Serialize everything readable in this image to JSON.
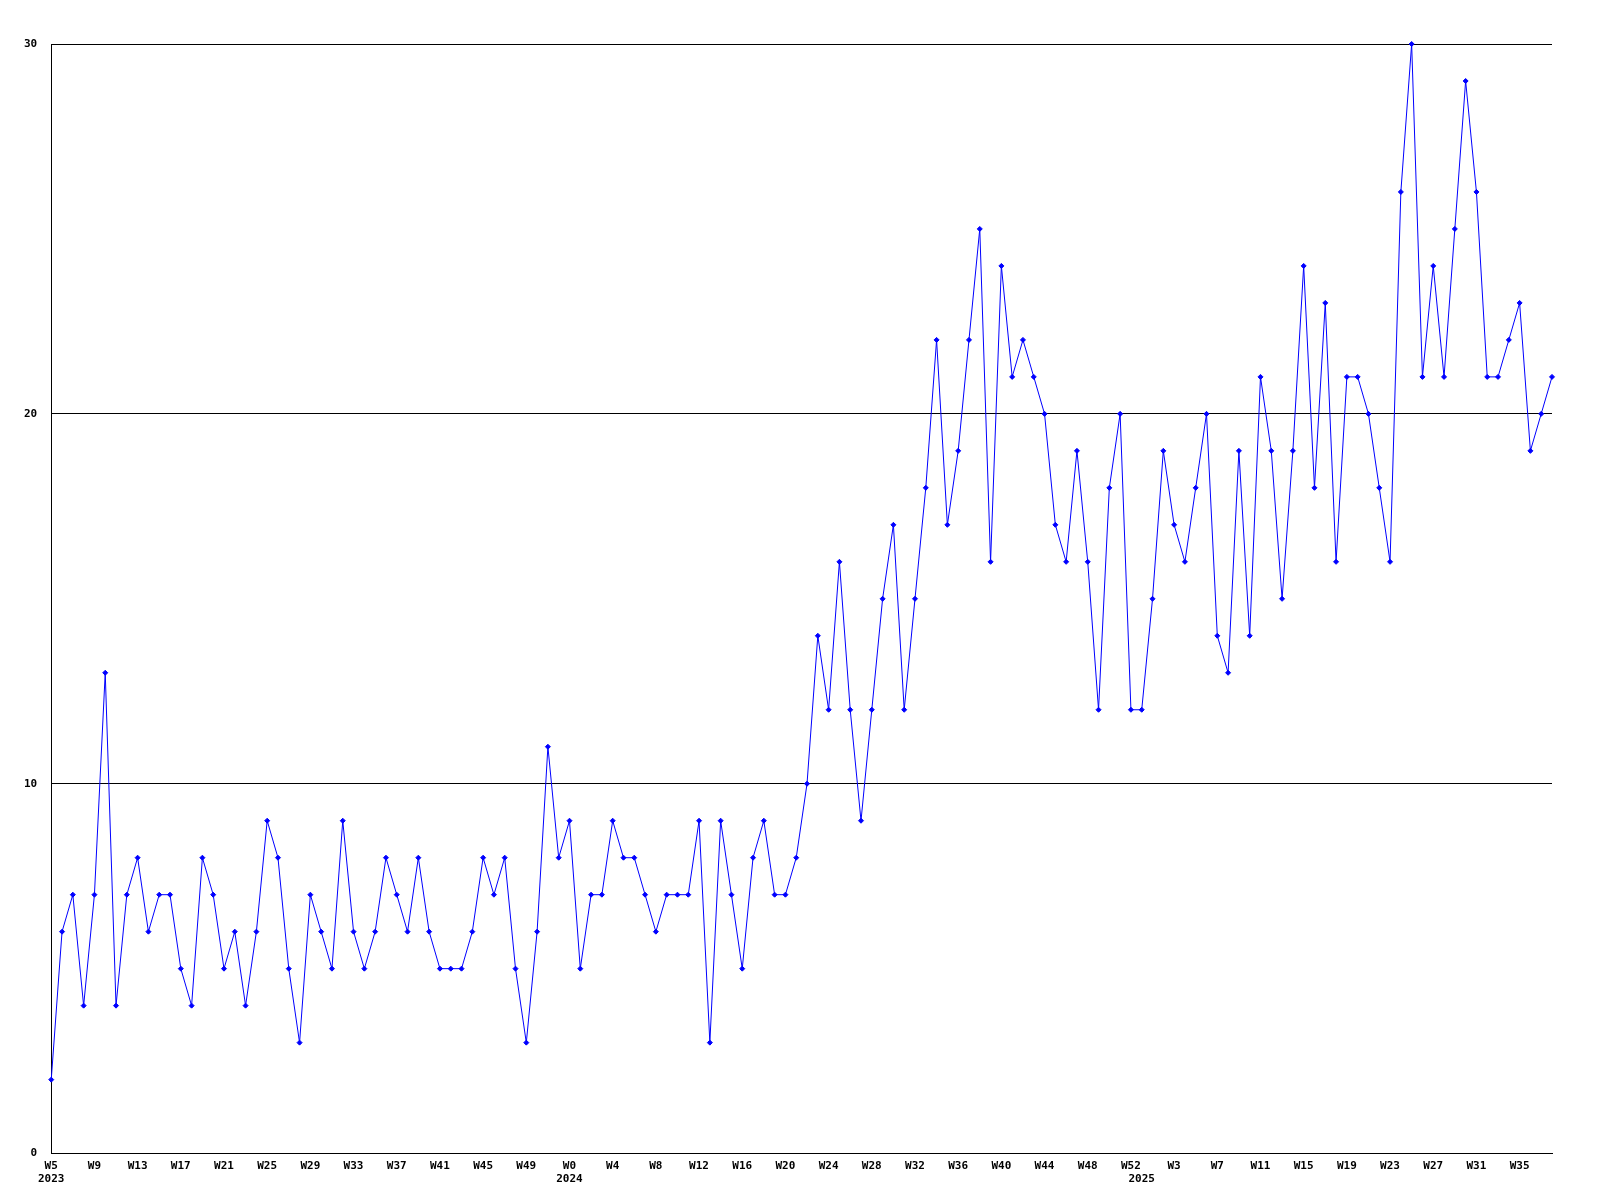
{
  "chart_data": {
    "type": "line",
    "categories": [
      "W5\n2023",
      null,
      null,
      null,
      "W9",
      null,
      null,
      null,
      "W13",
      null,
      null,
      null,
      "W17",
      null,
      null,
      null,
      "W21",
      null,
      null,
      null,
      "W25",
      null,
      null,
      null,
      "W29",
      null,
      null,
      null,
      "W33",
      null,
      null,
      null,
      "W37",
      null,
      null,
      null,
      "W41",
      null,
      null,
      null,
      "W45",
      null,
      null,
      null,
      "W49",
      null,
      null,
      null,
      "W0\n2024",
      null,
      null,
      null,
      "W4",
      null,
      null,
      null,
      "W8",
      null,
      null,
      null,
      "W12",
      null,
      null,
      null,
      "W16",
      null,
      null,
      null,
      "W20",
      null,
      null,
      null,
      "W24",
      null,
      null,
      null,
      "W28",
      null,
      null,
      null,
      "W32",
      null,
      null,
      null,
      "W36",
      null,
      null,
      null,
      "W40",
      null,
      null,
      null,
      "W44",
      null,
      null,
      null,
      "W48",
      null,
      null,
      null,
      "W52",
      "\n2025",
      null,
      null,
      "W3",
      null,
      null,
      null,
      "W7",
      null,
      null,
      null,
      "W11",
      null,
      null,
      null,
      "W15",
      null,
      null,
      null,
      "W19",
      null,
      null,
      null,
      "W23",
      null,
      null,
      null,
      "W27",
      null,
      null,
      null,
      "W31",
      null,
      null,
      null,
      "W35",
      null,
      null,
      null
    ],
    "series": [
      {
        "color": "#0000ff",
        "values": [
          2,
          6,
          7,
          4,
          7,
          13,
          4,
          7,
          8,
          6,
          7,
          7,
          5,
          4,
          8,
          7,
          5,
          6,
          4,
          6,
          9,
          8,
          5,
          3,
          7,
          6,
          5,
          9,
          6,
          5,
          6,
          8,
          7,
          6,
          8,
          6,
          5,
          5,
          5,
          6,
          8,
          7,
          8,
          5,
          3,
          6,
          11,
          8,
          9,
          5,
          7,
          7,
          9,
          8,
          8,
          7,
          6,
          7,
          7,
          7,
          9,
          3,
          9,
          7,
          5,
          8,
          9,
          7,
          7,
          8,
          10,
          14,
          12,
          16,
          12,
          9,
          12,
          15,
          17,
          12,
          15,
          18,
          22,
          17,
          19,
          22,
          25,
          16,
          24,
          21,
          22,
          21,
          20,
          17,
          16,
          19,
          16,
          12,
          18,
          20,
          12,
          12,
          15,
          19,
          17,
          16,
          18,
          20,
          14,
          13,
          19,
          14,
          21,
          19,
          15,
          19,
          24,
          18,
          23,
          16,
          21,
          21,
          20,
          18,
          16,
          26,
          30,
          21,
          24,
          21,
          25,
          29,
          26,
          21,
          21,
          22,
          23,
          19,
          20,
          21
        ]
      }
    ],
    "ylim": [
      0,
      30
    ],
    "yticks": [
      0,
      10,
      20,
      30
    ],
    "grid": "y",
    "legend": false,
    "marker": "diamond",
    "line_style": "solid"
  }
}
